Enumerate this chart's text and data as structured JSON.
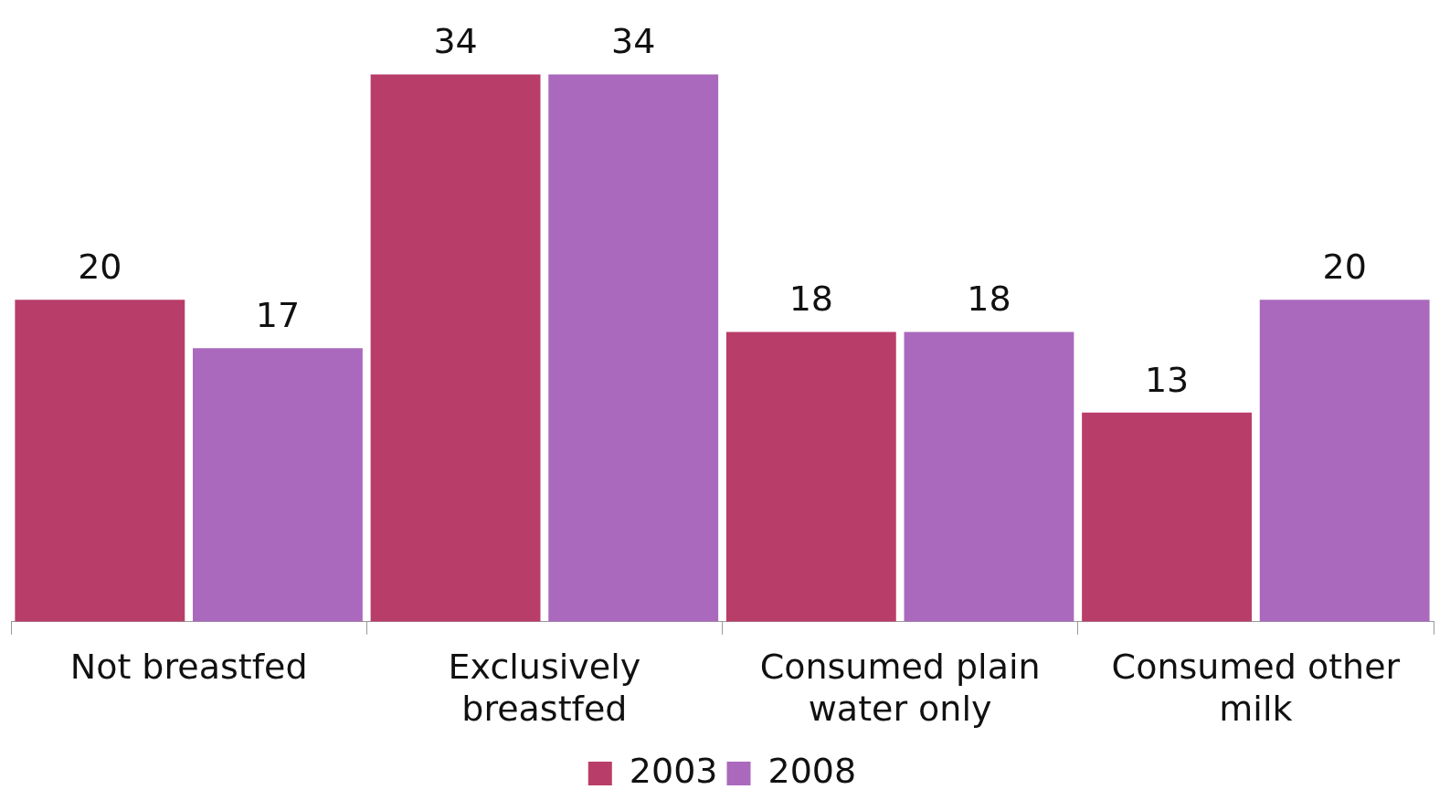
{
  "chart_data": {
    "type": "bar",
    "categories": [
      "Not breastfed",
      "Exclusively breastfed",
      "Consumed plain water only",
      "Consumed other milk"
    ],
    "series": [
      {
        "name": "2003",
        "color": "#b93d69",
        "values": [
          20,
          34,
          18,
          13
        ]
      },
      {
        "name": "2008",
        "color": "#aa69bd",
        "values": [
          17,
          34,
          18,
          20
        ]
      }
    ],
    "tick_labels": "x",
    "data_labels": true,
    "legend": "bottom",
    "grid": false
  }
}
